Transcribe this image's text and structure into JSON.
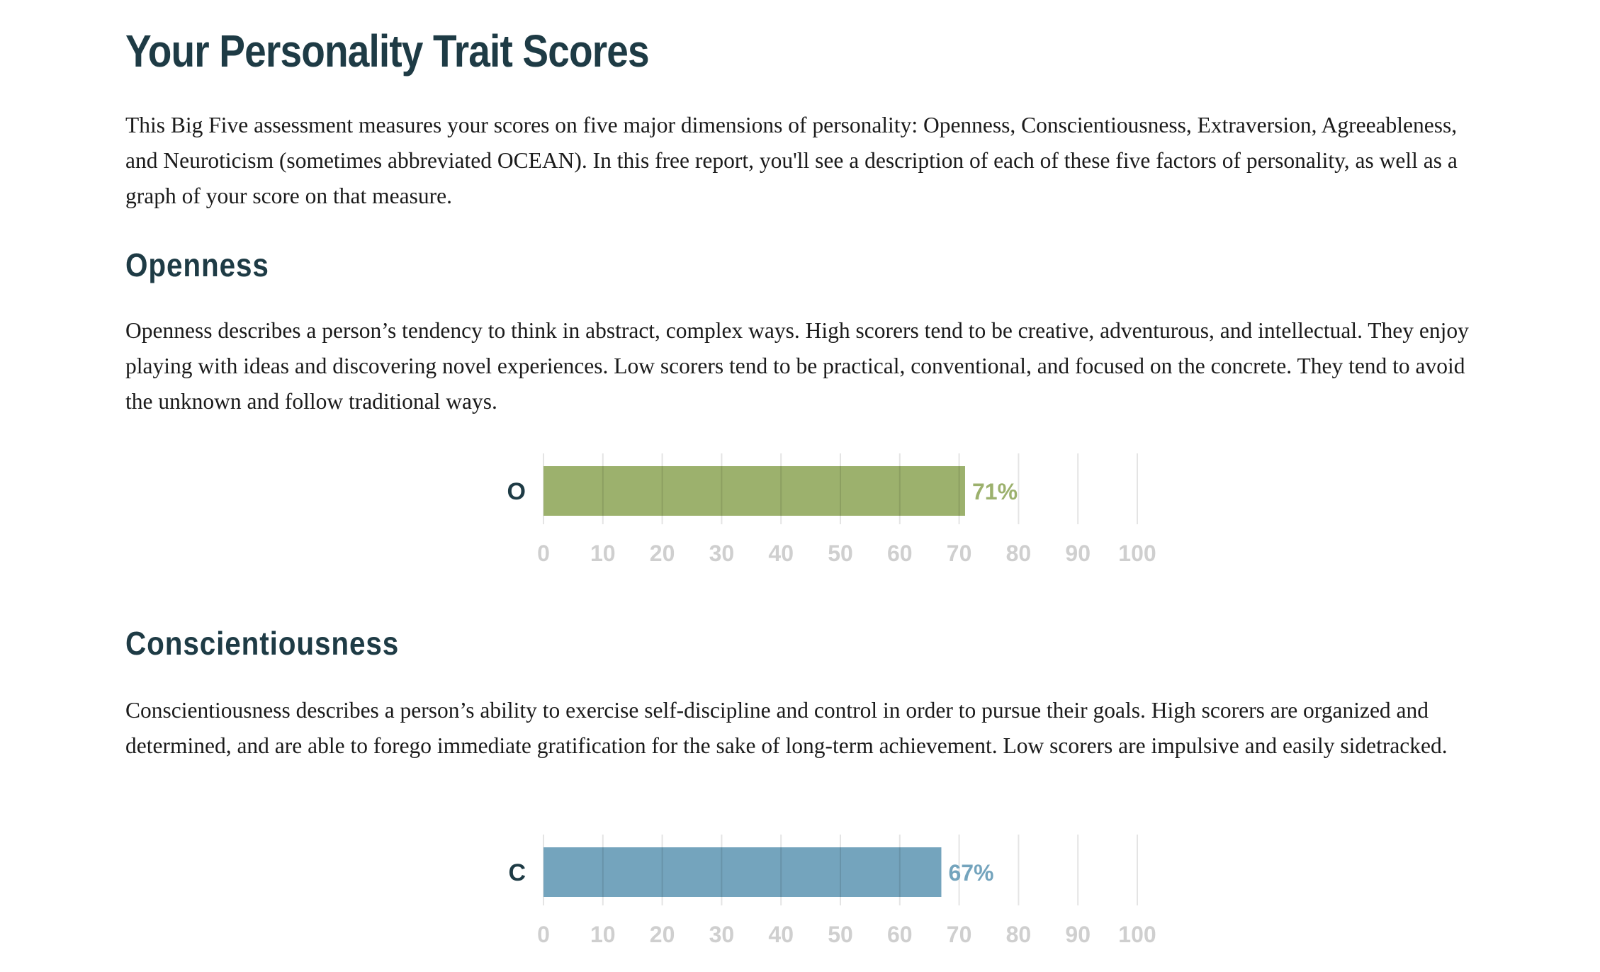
{
  "header": {
    "title": "Your Personality Trait Scores"
  },
  "intro": "This Big Five assessment measures your scores on five major dimensions of personality: Openness, Conscientiousness, Extraversion, Agreeableness, and Neuroticism (sometimes abbreviated OCEAN). In this free report, you'll see a description of each of these five factors of personality, as well as a graph of your score on that measure.",
  "sections": [
    {
      "heading": "Openness",
      "description": "Openness describes a person’s tendency to think in abstract, complex ways. High scorers tend to be creative, adventurous, and intellectual. They enjoy playing with ideas and discovering novel experiences. Low scorers tend to be practical, conventional, and focused on the concrete. They tend to avoid the unknown and follow traditional ways."
    },
    {
      "heading": "Conscientiousness",
      "description": "Conscientiousness describes a person’s ability to exercise self-discipline and control in order to pursue their goals. High scorers are organized and determined, and are able to forego immediate gratification for the sake of long-term achievement. Low scorers are impulsive and easily sidetracked."
    }
  ],
  "chart_data": [
    {
      "type": "bar",
      "orientation": "horizontal",
      "categories": [
        "O"
      ],
      "values": [
        71
      ],
      "value_label": "71%",
      "xlim": [
        0,
        100
      ],
      "xticks": [
        0,
        10,
        20,
        30,
        40,
        50,
        60,
        70,
        80,
        90,
        100
      ],
      "grid": true,
      "color": "#9cb16d"
    },
    {
      "type": "bar",
      "orientation": "horizontal",
      "categories": [
        "C"
      ],
      "values": [
        67
      ],
      "value_label": "67%",
      "xlim": [
        0,
        100
      ],
      "xticks": [
        0,
        10,
        20,
        30,
        40,
        50,
        60,
        70,
        80,
        90,
        100
      ],
      "grid": true,
      "color": "#74a4bd"
    }
  ]
}
